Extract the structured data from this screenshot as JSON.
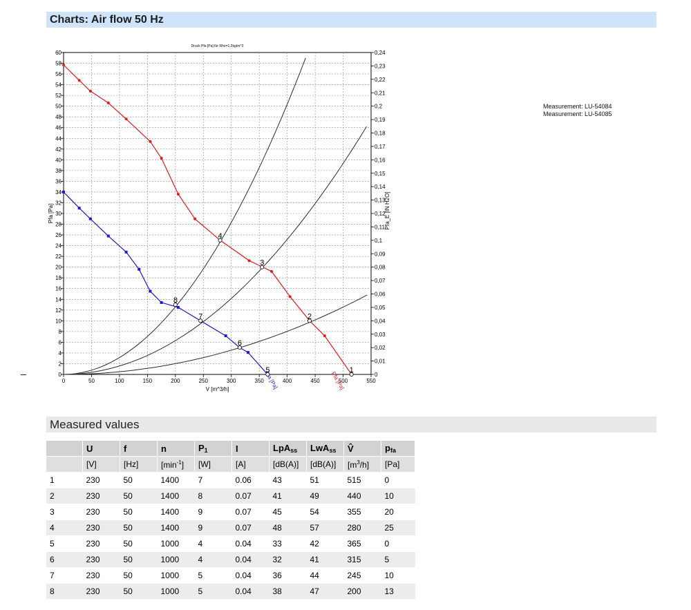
{
  "headers": {
    "charts": "Charts: Air flow 50 Hz",
    "measured": "Measured values"
  },
  "dash": "_",
  "legend": [
    "Measurement: LU-54084",
    "Measurement: LU-54085"
  ],
  "chart_data": {
    "type": "line",
    "title": "Druck Pfa [Pa] für Rho=1,2kg/m^3",
    "xlabel": "V [m^3/h]",
    "ylabel": "Pfa [Pa]",
    "y2label": "Pfa_E [IN H2O]",
    "xlim": [
      0,
      550
    ],
    "ylim": [
      0,
      60
    ],
    "y2lim": [
      0,
      0.24
    ],
    "xticks": [
      0,
      50,
      100,
      150,
      200,
      250,
      300,
      350,
      400,
      450,
      500,
      550
    ],
    "yticks": [
      0,
      2,
      4,
      6,
      8,
      10,
      12,
      14,
      16,
      18,
      20,
      22,
      24,
      26,
      28,
      30,
      32,
      34,
      36,
      38,
      40,
      42,
      44,
      46,
      48,
      50,
      52,
      54,
      56,
      58,
      60
    ],
    "y2ticks": [
      "0",
      "0,01",
      "0,02",
      "0,03",
      "0,04",
      "0,05",
      "0,06",
      "0,07",
      "0,08",
      "0,09",
      "0,1",
      "0,11",
      "0,12",
      "0,13",
      "0,14",
      "0,15",
      "0,16",
      "0,17",
      "0,18",
      "0,19",
      "0,2",
      "0,21",
      "0,22",
      "0,23",
      "0,24"
    ],
    "grid": true,
    "series": [
      {
        "name": "Pfa [Pa]",
        "color": "#e21b1b",
        "x": [
          0,
          28,
          48,
          80,
          112,
          155,
          175,
          205,
          235,
          280,
          332,
          372,
          405,
          440,
          467,
          515
        ],
        "y": [
          57.7,
          54.8,
          52.8,
          50.6,
          47.6,
          43.4,
          40.3,
          33.6,
          29.0,
          25.0,
          21.2,
          19.2,
          14.5,
          10.0,
          7.2,
          0
        ]
      },
      {
        "name": "Pfa [Pa]",
        "color": "#1919d4",
        "x": [
          0,
          28,
          48,
          80,
          112,
          135,
          155,
          175,
          205,
          245,
          290,
          315,
          330,
          365
        ],
        "y": [
          34.0,
          31.0,
          29.0,
          25.8,
          22.8,
          19.6,
          15.5,
          13.4,
          12.5,
          10.0,
          7.2,
          5.0,
          4.1,
          0
        ]
      }
    ],
    "system_curves": [
      {
        "x_end": 433,
        "y_end": 59.0
      },
      {
        "x_end": 542,
        "y_end": 46.2
      },
      {
        "x_end": 543,
        "y_end": 14.8
      }
    ],
    "point_labels": [
      {
        "label": "1",
        "x": 515,
        "y": 0
      },
      {
        "label": "2",
        "x": 440,
        "y": 10
      },
      {
        "label": "3",
        "x": 355,
        "y": 20
      },
      {
        "label": "4",
        "x": 280,
        "y": 25
      },
      {
        "label": "5",
        "x": 365,
        "y": 0
      },
      {
        "label": "6",
        "x": 315,
        "y": 5
      },
      {
        "label": "7",
        "x": 245,
        "y": 10
      },
      {
        "label": "8",
        "x": 200,
        "y": 13
      }
    ]
  },
  "table": {
    "headers": [
      "",
      "U",
      "f",
      "n",
      "P",
      "I",
      "LpA",
      "LwA",
      "V̂",
      "p"
    ],
    "header_subs": [
      "",
      "",
      "",
      "",
      "1",
      "",
      "ss",
      "ss",
      "",
      "fa"
    ],
    "units": [
      "",
      "[V]",
      "[Hz]",
      "[min",
      "[W]",
      "[A]",
      "[dB(A)]",
      "[dB(A)]",
      "[m",
      "[Pa]"
    ],
    "unit_sups": [
      "",
      "",
      "",
      "-1",
      "",
      "",
      "",
      "",
      "3",
      ""
    ],
    "unit_tails": [
      "",
      "",
      "",
      "]",
      "",
      "",
      "",
      "",
      "/h]",
      ""
    ],
    "rows": [
      [
        "1",
        "230",
        "50",
        "1400",
        "7",
        "0.06",
        "43",
        "51",
        "515",
        "0"
      ],
      [
        "2",
        "230",
        "50",
        "1400",
        "8",
        "0.07",
        "41",
        "49",
        "440",
        "10"
      ],
      [
        "3",
        "230",
        "50",
        "1400",
        "9",
        "0.07",
        "45",
        "54",
        "355",
        "20"
      ],
      [
        "4",
        "230",
        "50",
        "1400",
        "9",
        "0.07",
        "48",
        "57",
        "280",
        "25"
      ],
      [
        "5",
        "230",
        "50",
        "1000",
        "4",
        "0.04",
        "33",
        "42",
        "365",
        "0"
      ],
      [
        "6",
        "230",
        "50",
        "1000",
        "4",
        "0.04",
        "32",
        "41",
        "315",
        "5"
      ],
      [
        "7",
        "230",
        "50",
        "1000",
        "5",
        "0.04",
        "36",
        "44",
        "245",
        "10"
      ],
      [
        "8",
        "230",
        "50",
        "1000",
        "5",
        "0.04",
        "38",
        "47",
        "200",
        "13"
      ]
    ]
  }
}
